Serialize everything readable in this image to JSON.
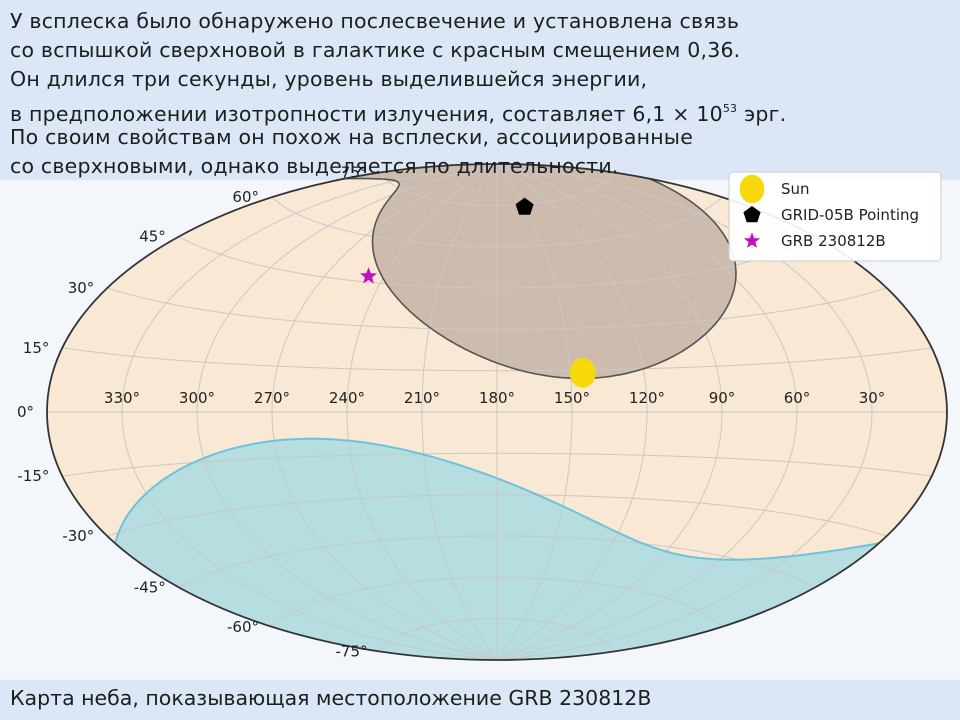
{
  "slide": {
    "description_lines": [
      "У всплеска было обнаружено послесвечение и установлена связь",
      "со вспышкой сверхновой в галактике с красным смещением 0,36.",
      "Он длился три секунды, уровень выделившейся энергии,",
      "в предположении изотропности излучения, составляет 6,1 × 10",
      "По своим свойствам он похож на всплески, ассоциированные",
      "со сверхновыми, однако выделяется по длительности."
    ],
    "energy_exponent": "53",
    "energy_unit": " эрг.",
    "caption": "Карта неба, показывающая местоположение GRB 230812B"
  },
  "chart_data": {
    "type": "scatter",
    "projection": "aitoff",
    "longitude_ticks": [
      "330°",
      "300°",
      "270°",
      "240°",
      "210°",
      "180°",
      "150°",
      "120°",
      "90°",
      "60°",
      "30°"
    ],
    "latitude_ticks": [
      "75°",
      "60°",
      "45°",
      "30°",
      "15°",
      "0°",
      "-15°",
      "-30°",
      "-45°",
      "-60°",
      "-75°"
    ],
    "grid": true,
    "legend_position": "top-right",
    "colors": {
      "sky_background": "#f9e8d4",
      "occulted_region": "#cdbcae",
      "occulted_edge": "#555555",
      "galactic_region": "#b6dde0",
      "galactic_edge": "#6ec3dc",
      "grid": "#c8c8c8",
      "sun": "#f7d90a",
      "grid_pointing": "#000000",
      "grb": "#c010c0"
    },
    "series": [
      {
        "name": "Sun",
        "marker": "circle",
        "ra": 145,
        "dec": 14
      },
      {
        "name": "GRID-05B Pointing",
        "marker": "pentagon",
        "ra": 150,
        "dec": 74
      },
      {
        "name": "GRB 230812B",
        "marker": "star",
        "ra": 248,
        "dec": 47
      }
    ]
  }
}
